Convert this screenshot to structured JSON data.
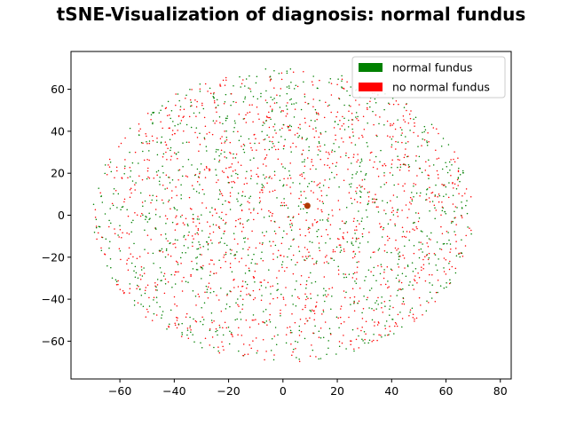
{
  "chart_data": {
    "type": "scatter",
    "title": "tSNE-Visualization of diagnosis: normal fundus",
    "xlabel": "",
    "ylabel": "",
    "xlim": [
      -78,
      84
    ],
    "ylim": [
      -78,
      78
    ],
    "xticks": [
      -60,
      -40,
      -20,
      0,
      20,
      40,
      60,
      80
    ],
    "yticks": [
      -60,
      -40,
      -20,
      0,
      20,
      40,
      60
    ],
    "grid": false,
    "legend_position": "top-right",
    "series": [
      {
        "name": "normal fundus",
        "color": "#008000",
        "distribution": "dense elliptical cloud of t-SNE points",
        "center": [
          0,
          0
        ],
        "radius": [
          70,
          70
        ],
        "count": 1100
      },
      {
        "name": "no normal fundus",
        "color": "#ff0000",
        "distribution": "dense elliptical cloud of t-SNE points",
        "center": [
          0,
          0
        ],
        "radius": [
          70,
          70
        ],
        "count": 1300
      }
    ],
    "highlight_point": {
      "x": 9,
      "y": 4.5,
      "color": "#b03a00"
    }
  }
}
